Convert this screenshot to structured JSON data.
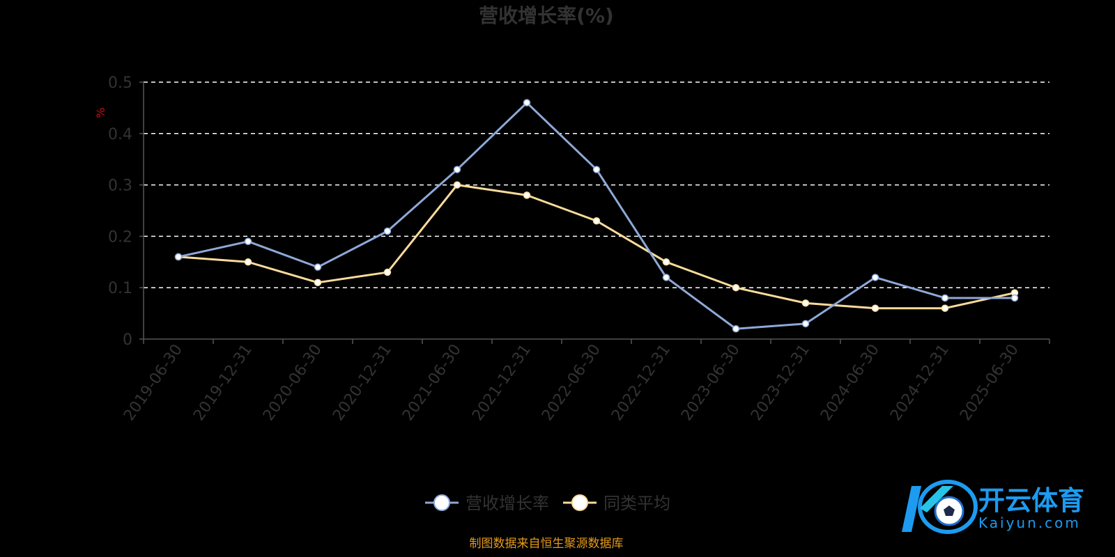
{
  "chart_data": {
    "type": "line",
    "title": "营收增长率(%)",
    "ylabel": "%",
    "xlabel": "",
    "ylim": [
      0,
      0.5
    ],
    "yticks": [
      "0",
      "0.1",
      "0.2",
      "0.3",
      "0.4",
      "0.5"
    ],
    "grid": true,
    "legend_position": "bottom",
    "categories": [
      "2019-06-30",
      "2019-12-31",
      "2020-06-30",
      "2020-12-31",
      "2021-06-30",
      "2021-12-31",
      "2022-06-30",
      "2022-12-31",
      "2023-06-30",
      "2023-12-31",
      "2024-06-30",
      "2024-12-31",
      "2025-06-30"
    ],
    "series": [
      {
        "name": "营收增长率",
        "color": "#8ea9d8",
        "values": [
          0.16,
          0.19,
          0.14,
          0.21,
          0.33,
          0.46,
          0.33,
          0.12,
          0.02,
          0.03,
          0.12,
          0.08,
          0.08
        ]
      },
      {
        "name": "同类平均",
        "color": "#fbdb9b",
        "values": [
          0.16,
          0.15,
          0.11,
          0.13,
          0.3,
          0.28,
          0.23,
          0.15,
          0.1,
          0.07,
          0.06,
          0.06,
          0.09
        ]
      }
    ]
  },
  "footer": {
    "source": "制图数据来自恒生聚源数据库"
  },
  "logo": {
    "name_cn": "开云体育",
    "name_en": "Kaiyun.com",
    "mark_letter": "K"
  },
  "colors": {
    "background": "#000000",
    "axis": "#555555",
    "grid": "#ffffff",
    "text": "#333333"
  }
}
